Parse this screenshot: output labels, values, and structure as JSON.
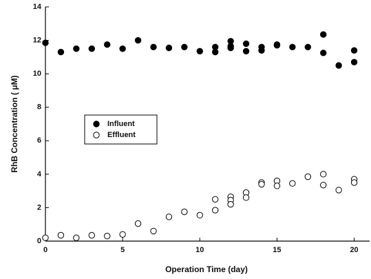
{
  "chart_data": {
    "type": "scatter",
    "xlabel": "Operation Time (day)",
    "ylabel": "RhB Concentration ( μM)",
    "xlim": [
      0,
      21
    ],
    "xticks": [
      0,
      5,
      10,
      15,
      20
    ],
    "ylim": [
      0,
      14
    ],
    "yticks": [
      0,
      2,
      4,
      6,
      8,
      10,
      12,
      14
    ],
    "series": [
      {
        "name": "Influent",
        "color": "#000000",
        "marker": "filled",
        "x": [
          0,
          1,
          2,
          3,
          4,
          5,
          6,
          7,
          8,
          9,
          10,
          11,
          11,
          12,
          12,
          12,
          13,
          13,
          14,
          14,
          15,
          15,
          16,
          17,
          18,
          18,
          19,
          20,
          20
        ],
        "values": [
          11.85,
          11.3,
          11.5,
          11.5,
          11.75,
          11.5,
          12.0,
          11.6,
          11.55,
          11.6,
          11.35,
          11.6,
          11.3,
          11.95,
          11.65,
          11.55,
          11.8,
          11.35,
          11.6,
          11.4,
          11.75,
          11.7,
          11.6,
          11.6,
          12.35,
          11.25,
          10.5,
          11.4,
          10.7
        ]
      },
      {
        "name": "Effluent",
        "color": "#000000",
        "marker": "open",
        "x": [
          0,
          1,
          2,
          3,
          4,
          5,
          6,
          7,
          8,
          9,
          10,
          11,
          11,
          12,
          12,
          12,
          13,
          13,
          14,
          14,
          15,
          15,
          16,
          17,
          18,
          18,
          19,
          20,
          20
        ],
        "values": [
          0.2,
          0.35,
          0.2,
          0.35,
          0.3,
          0.4,
          1.05,
          0.6,
          1.45,
          1.75,
          1.55,
          2.5,
          1.85,
          2.65,
          2.45,
          2.2,
          2.9,
          2.6,
          3.5,
          3.4,
          3.6,
          3.3,
          3.45,
          3.85,
          4.0,
          3.35,
          3.05,
          3.7,
          3.5
        ]
      }
    ]
  }
}
